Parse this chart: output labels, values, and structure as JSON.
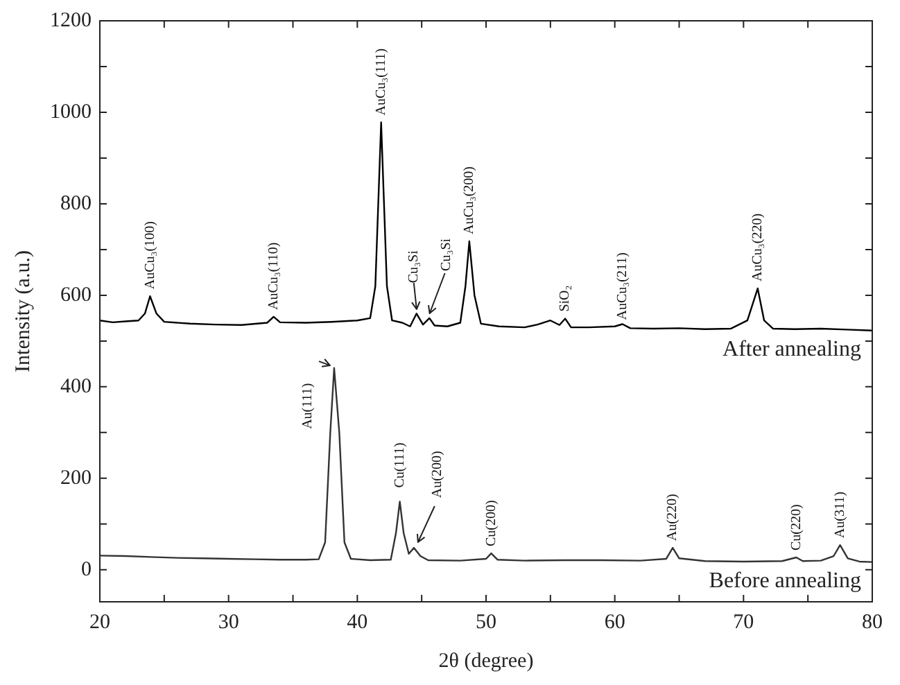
{
  "chart_data": {
    "type": "line",
    "xlabel": "2θ (degree)",
    "ylabel": "Intensity (a.u.)",
    "xlim": [
      20,
      80
    ],
    "ylim": [
      -70,
      1200
    ],
    "xticks": [
      20,
      {
        "value": 25,
        "label": null
      },
      30,
      {
        "value": 35,
        "label": null
      },
      40,
      {
        "value": 45,
        "label": null
      },
      50,
      {
        "value": 55,
        "label": null
      },
      60,
      {
        "value": 65,
        "label": null
      },
      70,
      {
        "value": 75,
        "label": null
      },
      80
    ],
    "yticks": [
      0,
      {
        "value": 100,
        "label": null
      },
      200,
      {
        "value": 300,
        "label": null
      },
      400,
      {
        "value": 500,
        "label": null
      },
      600,
      {
        "value": 700,
        "label": null
      },
      800,
      {
        "value": 900,
        "label": null
      },
      1000,
      {
        "value": 1100,
        "label": null
      },
      1200
    ],
    "grid": false,
    "legend": false,
    "marker": "none",
    "line_style": "solid",
    "series": [
      {
        "name": "After annealing",
        "color": "#000000",
        "x": [
          20,
          21,
          22,
          23,
          23.5,
          23.9,
          24.4,
          25,
          27,
          29,
          31,
          33,
          33.5,
          34,
          36,
          38,
          40,
          41,
          41.4,
          41.85,
          42.3,
          42.7,
          43.5,
          44.1,
          44.6,
          45.1,
          45.6,
          46,
          47,
          48,
          48.4,
          48.7,
          49.1,
          49.6,
          51,
          53,
          54,
          55,
          55.7,
          56.15,
          56.6,
          58,
          60,
          60.6,
          61.2,
          63,
          65,
          67,
          69,
          70.3,
          71.1,
          71.6,
          72.3,
          74,
          76,
          78,
          80
        ],
        "values": [
          545,
          541,
          543,
          545,
          560,
          598,
          560,
          542,
          538,
          536,
          535,
          540,
          553,
          541,
          540,
          542,
          545,
          550,
          620,
          978,
          620,
          545,
          540,
          532,
          560,
          536,
          550,
          534,
          532,
          540,
          620,
          718,
          600,
          538,
          532,
          530,
          536,
          545,
          535,
          549,
          530,
          530,
          532,
          537,
          528,
          527,
          528,
          526,
          527,
          545,
          615,
          545,
          527,
          526,
          527,
          525,
          523
        ]
      },
      {
        "name": "Before annealing",
        "color": "#333333",
        "x": [
          20,
          22,
          24,
          26,
          28,
          30,
          32,
          34,
          36,
          37,
          37.5,
          37.9,
          38.2,
          38.6,
          39,
          39.5,
          41,
          42.6,
          43,
          43.3,
          43.6,
          44,
          44.4,
          44.9,
          45.5,
          48,
          50,
          50.4,
          50.9,
          53,
          56,
          59,
          62,
          64,
          64.5,
          65,
          67,
          70,
          73,
          74.1,
          74.6,
          76,
          77,
          77.5,
          78.1,
          79,
          80
        ],
        "values": [
          31,
          30,
          28,
          26,
          25,
          24,
          23,
          22,
          22,
          23,
          60,
          300,
          441,
          300,
          60,
          24,
          21,
          22,
          80,
          149,
          80,
          35,
          48,
          30,
          21,
          20,
          24,
          36,
          22,
          20,
          21,
          21,
          20,
          24,
          48,
          25,
          19,
          18,
          19,
          27,
          19,
          20,
          30,
          54,
          25,
          18,
          17
        ]
      }
    ],
    "annotations": [
      {
        "text": "AuCu₃(100)",
        "x": 23.9,
        "y": 598
      },
      {
        "text": "AuCu₃(110)",
        "x": 33.5,
        "y": 553
      },
      {
        "text": "AuCu₃(111)",
        "x": 41.85,
        "y": 978
      },
      {
        "text": "Cu₃Si",
        "x": 44.6,
        "y": 560
      },
      {
        "text": "Cu₃Si",
        "x": 45.6,
        "y": 550
      },
      {
        "text": "AuCu₃(200)",
        "x": 48.7,
        "y": 718
      },
      {
        "text": "SiO₂",
        "x": 56.15,
        "y": 549
      },
      {
        "text": "AuCu₃(211)",
        "x": 60.6,
        "y": 537
      },
      {
        "text": "AuCu₃(220)",
        "x": 71.1,
        "y": 615
      },
      {
        "text": "Au(111)",
        "x": 38.2,
        "y": 441
      },
      {
        "text": "Cu(111)",
        "x": 43.3,
        "y": 149
      },
      {
        "text": "Au(200)",
        "x": 44.4,
        "y": 48
      },
      {
        "text": "Cu(200)",
        "x": 50.4,
        "y": 36
      },
      {
        "text": "Au(220)",
        "x": 64.5,
        "y": 48
      },
      {
        "text": "Cu(220)",
        "x": 74.1,
        "y": 27
      },
      {
        "text": "Au(311)",
        "x": 77.5,
        "y": 54
      }
    ]
  }
}
